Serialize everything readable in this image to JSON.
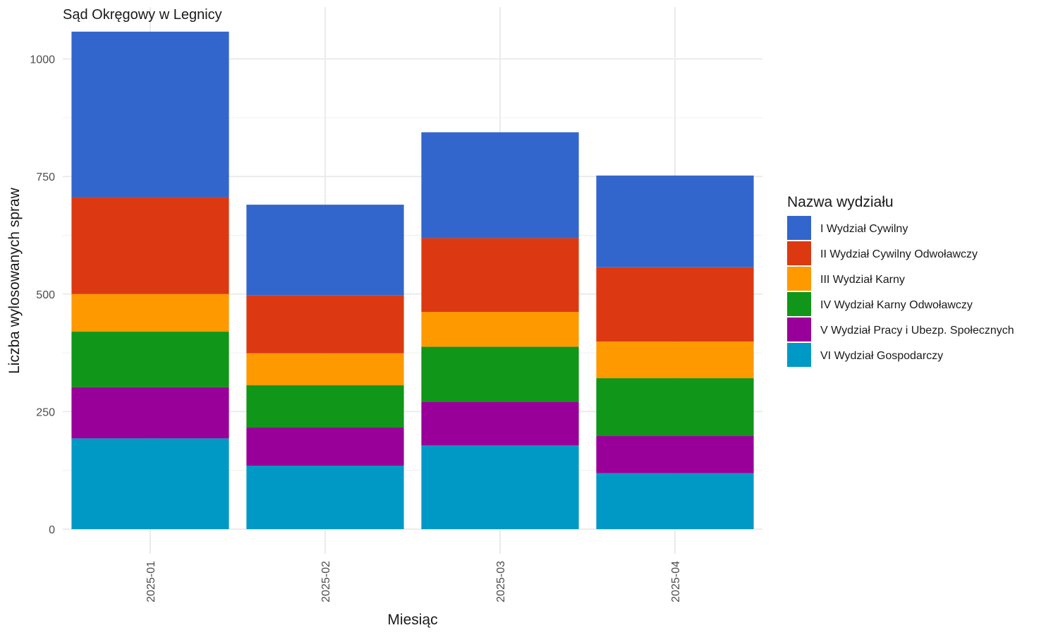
{
  "chart_data": {
    "type": "bar",
    "stacked": true,
    "title": "Sąd Okręgowy w Legnicy",
    "xlabel": "Miesiąc",
    "ylabel": "Liczba wylosowanych spraw",
    "categories": [
      "2025-01",
      "2025-02",
      "2025-03",
      "2025-04"
    ],
    "ylim": [
      0,
      1060
    ],
    "yticks": [
      0,
      250,
      500,
      750,
      1000
    ],
    "grid": true,
    "legend": {
      "title": "Nazwa wydziału",
      "position": "right"
    },
    "series": [
      {
        "name": "I Wydział Cywilny",
        "color": "#3366CC",
        "values": [
          352,
          193,
          225,
          195
        ]
      },
      {
        "name": "II Wydział Cywilny Odwoławczy",
        "color": "#DC3912",
        "values": [
          206,
          123,
          157,
          158
        ]
      },
      {
        "name": "III Wydział Karny",
        "color": "#FF9900",
        "values": [
          80,
          68,
          74,
          78
        ]
      },
      {
        "name": "IV Wydział Karny Odwoławczy",
        "color": "#109618",
        "values": [
          118,
          90,
          117,
          123
        ]
      },
      {
        "name": "V Wydział Pracy i Ubezp. Społecznych",
        "color": "#990099",
        "values": [
          109,
          81,
          93,
          79
        ]
      },
      {
        "name": "VI Wydział Gospodarczy",
        "color": "#0099C6",
        "values": [
          193,
          135,
          178,
          119
        ]
      }
    ]
  }
}
